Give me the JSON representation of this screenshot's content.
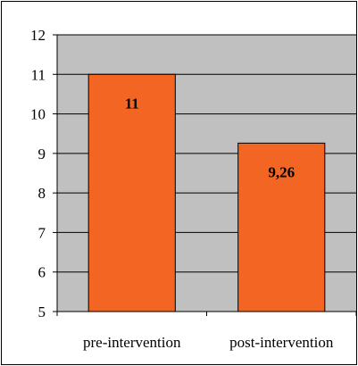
{
  "chart_data": {
    "type": "bar",
    "categories": [
      "pre-intervention",
      "post-intervention"
    ],
    "values": [
      11,
      9.26
    ],
    "data_labels": [
      "11",
      "9,26"
    ],
    "ylim": [
      5,
      12
    ],
    "yticks": [
      5,
      6,
      7,
      8,
      9,
      10,
      11,
      12
    ],
    "grid": true,
    "colors": {
      "bar": "#F26522",
      "plot_background": "#C0C0C0",
      "gridline": "#000000"
    }
  }
}
